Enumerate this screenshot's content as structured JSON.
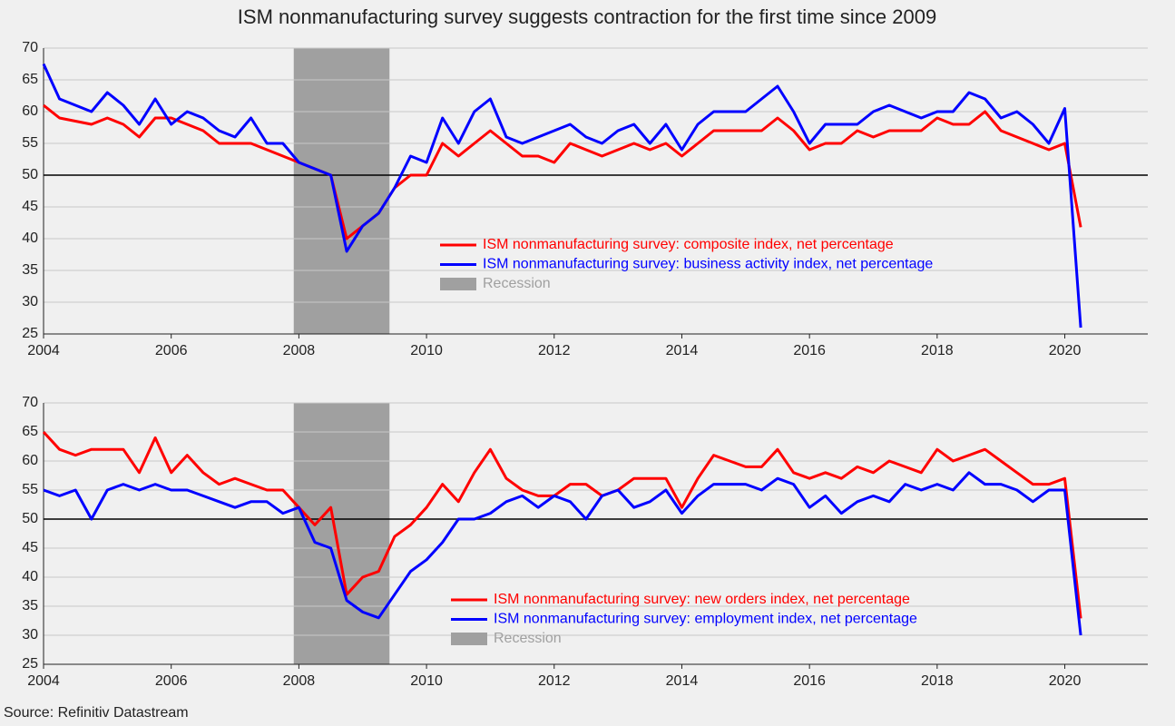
{
  "title": "ISM nonmanufacturing survey suggests contraction for the first time since 2009",
  "source": "Source: Refinitiv Datastream",
  "chart_data": [
    {
      "type": "line",
      "x": [
        2004,
        2004.25,
        2004.5,
        2004.75,
        2005,
        2005.25,
        2005.5,
        2005.75,
        2006,
        2006.25,
        2006.5,
        2006.75,
        2007,
        2007.25,
        2007.5,
        2007.75,
        2008,
        2008.25,
        2008.5,
        2008.75,
        2009,
        2009.25,
        2009.5,
        2009.75,
        2010,
        2010.25,
        2010.5,
        2010.75,
        2011,
        2011.25,
        2011.5,
        2011.75,
        2012,
        2012.25,
        2012.5,
        2012.75,
        2013,
        2013.25,
        2013.5,
        2013.75,
        2014,
        2014.25,
        2014.5,
        2014.75,
        2015,
        2015.25,
        2015.5,
        2015.75,
        2016,
        2016.25,
        2016.5,
        2016.75,
        2017,
        2017.25,
        2017.5,
        2017.75,
        2018,
        2018.25,
        2018.5,
        2018.75,
        2019,
        2019.25,
        2019.5,
        2019.75,
        2020,
        2020.25
      ],
      "series": [
        {
          "name": "ISM nonmanufacturing survey: composite index, net percentage",
          "color": "#ff0000",
          "values": [
            61,
            59,
            58.5,
            58,
            59,
            58,
            56,
            59,
            59,
            58,
            57,
            55,
            55,
            55,
            54,
            53,
            52,
            51,
            50,
            40,
            42,
            44,
            48,
            50,
            50,
            55,
            53,
            55,
            57,
            55,
            53,
            53,
            52,
            55,
            54,
            53,
            54,
            55,
            54,
            55,
            53,
            55,
            57,
            57,
            57,
            57,
            59,
            57,
            54,
            55,
            55,
            57,
            56,
            57,
            57,
            57,
            59,
            58,
            58,
            60,
            57,
            56,
            55,
            54,
            55,
            41.8
          ]
        },
        {
          "name": "ISM nonmanufacturing survey: business activity index, net percentage",
          "color": "#0000ff",
          "values": [
            67.5,
            62,
            61,
            60,
            63,
            61,
            58,
            62,
            58,
            60,
            59,
            57,
            56,
            59,
            55,
            55,
            52,
            51,
            50,
            38,
            42,
            44,
            48,
            53,
            52,
            59,
            55,
            60,
            62,
            56,
            55,
            56,
            57,
            58,
            56,
            55,
            57,
            58,
            55,
            58,
            54,
            58,
            60,
            60,
            60,
            62,
            64,
            60,
            55,
            58,
            58,
            58,
            60,
            61,
            60,
            59,
            60,
            60,
            63,
            62,
            59,
            60,
            58,
            55,
            60.5,
            26
          ]
        }
      ],
      "shade": {
        "name": "Recession",
        "color": "#a0a0a0",
        "range": [
          2007.92,
          2009.42
        ]
      },
      "hline": 50,
      "xlim": [
        2004,
        2021.3
      ],
      "xticks": [
        2004,
        2006,
        2008,
        2010,
        2012,
        2014,
        2016,
        2018,
        2020
      ],
      "ylim": [
        25,
        70
      ],
      "yticks": [
        25,
        30,
        35,
        40,
        45,
        50,
        55,
        60,
        65,
        70
      ],
      "grid": true
    },
    {
      "type": "line",
      "x": [
        2004,
        2004.25,
        2004.5,
        2004.75,
        2005,
        2005.25,
        2005.5,
        2005.75,
        2006,
        2006.25,
        2006.5,
        2006.75,
        2007,
        2007.25,
        2007.5,
        2007.75,
        2008,
        2008.25,
        2008.5,
        2008.75,
        2009,
        2009.25,
        2009.5,
        2009.75,
        2010,
        2010.25,
        2010.5,
        2010.75,
        2011,
        2011.25,
        2011.5,
        2011.75,
        2012,
        2012.25,
        2012.5,
        2012.75,
        2013,
        2013.25,
        2013.5,
        2013.75,
        2014,
        2014.25,
        2014.5,
        2014.75,
        2015,
        2015.25,
        2015.5,
        2015.75,
        2016,
        2016.25,
        2016.5,
        2016.75,
        2017,
        2017.25,
        2017.5,
        2017.75,
        2018,
        2018.25,
        2018.5,
        2018.75,
        2019,
        2019.25,
        2019.5,
        2019.75,
        2020,
        2020.25
      ],
      "series": [
        {
          "name": "ISM nonmanufacturing survey: new orders index, net percentage",
          "color": "#ff0000",
          "values": [
            65,
            62,
            61,
            62,
            62,
            62,
            58,
            64,
            58,
            61,
            58,
            56,
            57,
            56,
            55,
            55,
            52,
            49,
            52,
            37,
            40,
            41,
            47,
            49,
            52,
            56,
            53,
            58,
            62,
            57,
            55,
            54,
            54,
            56,
            56,
            54,
            55,
            57,
            57,
            57,
            52,
            57,
            61,
            60,
            59,
            59,
            62,
            58,
            57,
            58,
            57,
            59,
            58,
            60,
            59,
            58,
            62,
            60,
            61,
            62,
            60,
            58,
            56,
            56,
            57,
            32.9
          ]
        },
        {
          "name": "ISM nonmanufacturing survey: employment index, net percentage",
          "color": "#0000ff",
          "values": [
            55,
            54,
            55,
            50,
            55,
            56,
            55,
            56,
            55,
            55,
            54,
            53,
            52,
            53,
            53,
            51,
            52,
            46,
            45,
            36,
            34,
            33,
            37,
            41,
            43,
            46,
            50,
            50,
            51,
            53,
            54,
            52,
            54,
            53,
            50,
            54,
            55,
            52,
            53,
            55,
            51,
            54,
            56,
            56,
            56,
            55,
            57,
            56,
            52,
            54,
            51,
            53,
            54,
            53,
            56,
            55,
            56,
            55,
            58,
            56,
            56,
            55,
            53,
            55,
            55,
            30
          ]
        }
      ],
      "shade": {
        "name": "Recession",
        "color": "#a0a0a0",
        "range": [
          2007.92,
          2009.42
        ]
      },
      "hline": 50,
      "xlim": [
        2004,
        2021.3
      ],
      "xticks": [
        2004,
        2006,
        2008,
        2010,
        2012,
        2014,
        2016,
        2018,
        2020
      ],
      "ylim": [
        25,
        70
      ],
      "yticks": [
        25,
        30,
        35,
        40,
        45,
        50,
        55,
        60,
        65,
        70
      ],
      "grid": true
    }
  ]
}
